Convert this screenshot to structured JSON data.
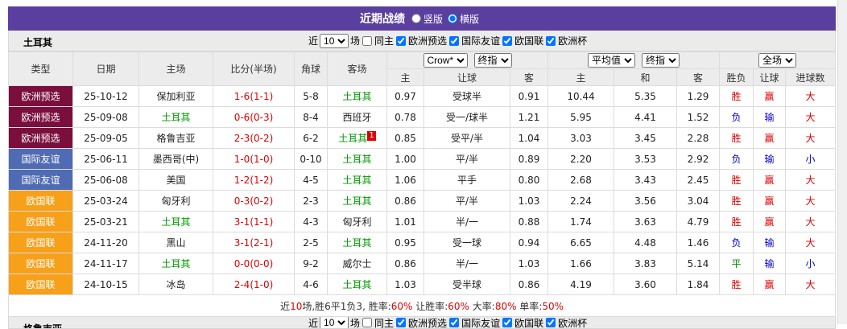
{
  "header": {
    "title": "近期战绩",
    "view_options": [
      "竖版",
      "横版"
    ]
  },
  "section": {
    "team": "土耳其",
    "filter": {
      "prefix": "近",
      "count": "10",
      "suffix": "场",
      "same_home": "同主",
      "competitions": [
        "欧洲预选",
        "国际友谊",
        "欧国联",
        "欧洲杯"
      ]
    }
  },
  "table": {
    "columns": [
      "类型",
      "日期",
      "主场",
      "比分(半场)",
      "角球",
      "客场"
    ],
    "handicap_company": "Crow*",
    "handicap_mode": "终指",
    "odds_company": "平均值",
    "odds_mode": "终指",
    "result_scope": "全场",
    "sub_columns": [
      "主",
      "让球",
      "客",
      "主",
      "和",
      "客",
      "胜负",
      "让球",
      "进球数"
    ],
    "rows": [
      {
        "type": "欧洲预选",
        "date": "25-10-12",
        "home": "保加利亚",
        "score": "1-6(1-1)",
        "corners": "5-8",
        "away": "土耳其",
        "hc_home": "0.97",
        "handicap": "受球半",
        "hc_away": "0.91",
        "odds_home": "10.44",
        "odds_draw": "5.35",
        "odds_away": "1.29",
        "result": "胜",
        "handicap_result": "赢",
        "goals": "大"
      },
      {
        "type": "欧洲预选",
        "date": "25-09-08",
        "home": "土耳其",
        "score": "0-6(0-3)",
        "corners": "8-4",
        "away": "西班牙",
        "hc_home": "0.78",
        "handicap": "受一/球半",
        "hc_away": "1.21",
        "odds_home": "5.95",
        "odds_draw": "4.41",
        "odds_away": "1.52",
        "result": "负",
        "handicap_result": "输",
        "goals": "大"
      },
      {
        "type": "欧洲预选",
        "date": "25-09-05",
        "home": "格鲁吉亚",
        "score": "2-3(0-2)",
        "corners": "6-2",
        "away": "土耳其",
        "away_red_card": "1",
        "hc_home": "0.85",
        "handicap": "受平/半",
        "hc_away": "1.04",
        "odds_home": "3.03",
        "odds_draw": "3.45",
        "odds_away": "2.28",
        "result": "胜",
        "handicap_result": "赢",
        "goals": "大"
      },
      {
        "type": "国际友谊",
        "date": "25-06-11",
        "home": "墨西哥(中)",
        "score": "1-0(1-0)",
        "corners": "0-10",
        "away": "土耳其",
        "hc_home": "1.00",
        "handicap": "平/半",
        "hc_away": "0.89",
        "odds_home": "2.20",
        "odds_draw": "3.53",
        "odds_away": "2.92",
        "result": "负",
        "handicap_result": "输",
        "goals": "小"
      },
      {
        "type": "国际友谊",
        "date": "25-06-08",
        "home": "美国",
        "score": "1-2(1-2)",
        "corners": "4-5",
        "away": "土耳其",
        "hc_home": "1.06",
        "handicap": "平手",
        "hc_away": "0.80",
        "odds_home": "2.68",
        "odds_draw": "3.43",
        "odds_away": "2.45",
        "result": "胜",
        "handicap_result": "赢",
        "goals": "大"
      },
      {
        "type": "欧国联",
        "date": "25-03-24",
        "home": "匈牙利",
        "score": "0-3(0-2)",
        "corners": "2-3",
        "away": "土耳其",
        "hc_home": "0.86",
        "handicap": "平/半",
        "hc_away": "1.03",
        "odds_home": "2.24",
        "odds_draw": "3.56",
        "odds_away": "3.04",
        "result": "胜",
        "handicap_result": "赢",
        "goals": "大"
      },
      {
        "type": "欧国联",
        "date": "25-03-21",
        "home": "土耳其",
        "score": "3-1(1-1)",
        "corners": "4-3",
        "away": "匈牙利",
        "hc_home": "1.01",
        "handicap": "半/一",
        "hc_away": "0.88",
        "odds_home": "1.74",
        "odds_draw": "3.63",
        "odds_away": "4.79",
        "result": "胜",
        "handicap_result": "赢",
        "goals": "大"
      },
      {
        "type": "欧国联",
        "date": "24-11-20",
        "home": "黑山",
        "score": "3-1(2-1)",
        "corners": "2-5",
        "away": "土耳其",
        "hc_home": "0.95",
        "handicap": "受一球",
        "hc_away": "0.94",
        "odds_home": "6.65",
        "odds_draw": "4.48",
        "odds_away": "1.46",
        "result": "负",
        "handicap_result": "输",
        "goals": "大"
      },
      {
        "type": "欧国联",
        "date": "24-11-17",
        "home": "土耳其",
        "score": "0-0(0-0)",
        "corners": "9-2",
        "away": "威尔士",
        "hc_home": "0.86",
        "handicap": "半/一",
        "hc_away": "1.03",
        "odds_home": "1.66",
        "odds_draw": "3.83",
        "odds_away": "5.14",
        "result": "平",
        "handicap_result": "输",
        "goals": "小"
      },
      {
        "type": "欧国联",
        "date": "24-10-15",
        "home": "冰岛",
        "score": "2-4(1-0)",
        "corners": "4-6",
        "away": "土耳其",
        "hc_home": "1.03",
        "handicap": "受半球",
        "hc_away": "0.86",
        "odds_home": "4.19",
        "odds_draw": "3.60",
        "odds_away": "1.84",
        "result": "胜",
        "handicap_result": "赢",
        "goals": "大"
      }
    ],
    "outcome_colors": {
      "胜": "#e00000",
      "赢": "#e00000",
      "大": "#e00000",
      "负": "#0000cc",
      "输": "#0000cc",
      "小": "#0000cc",
      "平": "#008800"
    },
    "summary": [
      "近",
      "10",
      "场,胜6平1负3, 胜率:",
      "60%",
      " 让胜率:",
      "60%",
      " 大率:",
      "80%",
      " 单率:",
      "50%"
    ]
  },
  "next_section": {
    "team": "格鲁吉亚",
    "filter": {
      "prefix": "近",
      "count": "10",
      "suffix": "场",
      "same_home": "同主",
      "competitions": [
        "欧洲预选",
        "国际友谊",
        "欧国联",
        "欧洲杯"
      ]
    }
  }
}
